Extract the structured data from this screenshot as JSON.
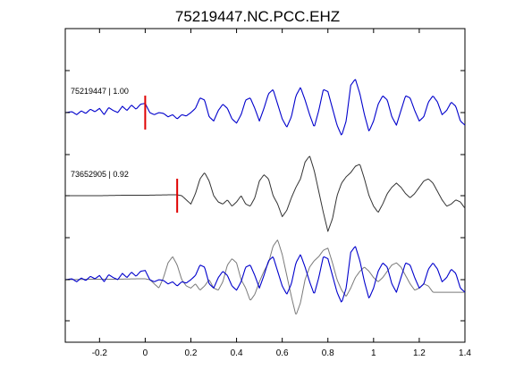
{
  "chart_data": {
    "type": "line",
    "title": "75219447.NC.PCC.EHZ",
    "xlabel": "",
    "ylabel": "",
    "xlim": [
      -0.35,
      1.4
    ],
    "x_ticks": [
      -0.2,
      0,
      0.2,
      0.4,
      0.6,
      0.8,
      1,
      1.2,
      1.4
    ],
    "x_tick_labels": [
      "-0.2",
      "0",
      "0.2",
      "0.4",
      "0.6",
      "0.8",
      "1",
      "1.2",
      "1.4"
    ],
    "grid": false,
    "colors": {
      "target": "#0000cc",
      "template": "#333333",
      "overlay_template": "#7a7a7a",
      "pick": "#e00000",
      "axis": "#000000"
    },
    "traces": [
      {
        "label": "75219447 | 1.00",
        "color": "#0000cc",
        "pick_time": 0.0,
        "x": [
          -0.35,
          -0.32,
          -0.3,
          -0.28,
          -0.26,
          -0.24,
          -0.22,
          -0.2,
          -0.18,
          -0.16,
          -0.14,
          -0.12,
          -0.1,
          -0.08,
          -0.06,
          -0.04,
          -0.02,
          0.0,
          0.02,
          0.04,
          0.06,
          0.08,
          0.1,
          0.12,
          0.14,
          0.16,
          0.18,
          0.2,
          0.22,
          0.24,
          0.26,
          0.28,
          0.3,
          0.32,
          0.34,
          0.36,
          0.38,
          0.4,
          0.42,
          0.44,
          0.46,
          0.48,
          0.5,
          0.52,
          0.54,
          0.56,
          0.58,
          0.6,
          0.62,
          0.64,
          0.66,
          0.68,
          0.7,
          0.72,
          0.74,
          0.76,
          0.78,
          0.8,
          0.82,
          0.84,
          0.86,
          0.88,
          0.9,
          0.92,
          0.94,
          0.96,
          0.98,
          1.0,
          1.02,
          1.04,
          1.06,
          1.08,
          1.1,
          1.12,
          1.14,
          1.16,
          1.18,
          1.2,
          1.22,
          1.24,
          1.26,
          1.28,
          1.3,
          1.32,
          1.34,
          1.36,
          1.38,
          1.4
        ],
        "y": [
          0.0,
          0.02,
          -0.05,
          0.04,
          -0.02,
          0.08,
          0.02,
          0.1,
          -0.05,
          0.12,
          0.05,
          0.0,
          0.15,
          0.05,
          0.18,
          0.08,
          0.2,
          0.22,
          0.0,
          -0.05,
          0.0,
          -0.02,
          -0.1,
          -0.05,
          -0.15,
          -0.05,
          -0.08,
          0.0,
          0.1,
          0.35,
          0.3,
          -0.1,
          -0.2,
          0.05,
          0.2,
          0.1,
          -0.15,
          -0.25,
          -0.05,
          0.3,
          0.35,
          0.1,
          -0.2,
          0.1,
          0.45,
          0.55,
          0.2,
          -0.15,
          -0.35,
          -0.1,
          0.4,
          0.6,
          0.3,
          -0.05,
          -0.35,
          0.05,
          0.55,
          0.5,
          0.1,
          -0.3,
          -0.55,
          -0.2,
          0.65,
          0.8,
          0.45,
          -0.05,
          -0.45,
          -0.2,
          0.2,
          0.4,
          0.3,
          -0.1,
          -0.3,
          0.05,
          0.4,
          0.35,
          0.05,
          -0.2,
          -0.1,
          0.25,
          0.4,
          0.25,
          -0.05,
          0.05,
          0.25,
          0.15,
          -0.2,
          -0.3
        ]
      },
      {
        "label": "73652905 | 0.92",
        "color": "#333333",
        "pick_time": 0.14,
        "x": [
          -0.35,
          -0.2,
          -0.1,
          0.0,
          0.1,
          0.14,
          0.16,
          0.18,
          0.2,
          0.22,
          0.24,
          0.26,
          0.28,
          0.3,
          0.32,
          0.34,
          0.36,
          0.38,
          0.4,
          0.42,
          0.44,
          0.46,
          0.48,
          0.5,
          0.52,
          0.54,
          0.56,
          0.58,
          0.6,
          0.62,
          0.64,
          0.66,
          0.68,
          0.7,
          0.72,
          0.74,
          0.76,
          0.78,
          0.8,
          0.82,
          0.84,
          0.86,
          0.88,
          0.9,
          0.92,
          0.94,
          0.96,
          0.98,
          1.0,
          1.02,
          1.04,
          1.06,
          1.08,
          1.1,
          1.12,
          1.14,
          1.16,
          1.18,
          1.2,
          1.22,
          1.24,
          1.26,
          1.28,
          1.3,
          1.32,
          1.34,
          1.36,
          1.38,
          1.4
        ],
        "y": [
          0.0,
          0.0,
          0.01,
          0.01,
          0.02,
          0.02,
          0.0,
          -0.1,
          -0.2,
          0.05,
          0.4,
          0.55,
          0.35,
          0.0,
          -0.15,
          -0.2,
          -0.1,
          -0.25,
          -0.15,
          0.0,
          -0.2,
          -0.25,
          -0.05,
          0.35,
          0.5,
          0.4,
          0.0,
          -0.2,
          -0.5,
          -0.35,
          -0.05,
          0.2,
          0.4,
          0.8,
          0.95,
          0.6,
          0.1,
          -0.4,
          -0.85,
          -0.55,
          0.0,
          0.3,
          0.45,
          0.55,
          0.7,
          0.75,
          0.4,
          0.0,
          -0.25,
          -0.4,
          -0.2,
          0.05,
          0.2,
          0.3,
          0.2,
          0.05,
          -0.05,
          0.05,
          0.2,
          0.35,
          0.4,
          0.3,
          0.1,
          -0.1,
          -0.25,
          -0.2,
          -0.1,
          -0.15,
          -0.3
        ]
      }
    ],
    "overlay": {
      "components": [
        "75219447 | 1.00",
        "73652905 | 0.92"
      ],
      "note_shift": 0.14
    }
  }
}
